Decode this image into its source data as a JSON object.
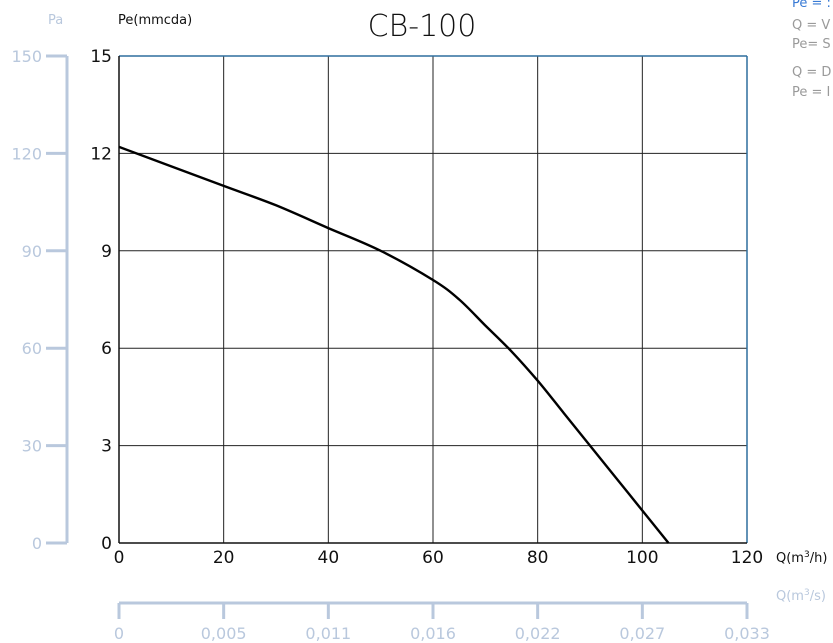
{
  "chart_data": {
    "type": "line",
    "title": "CB-100",
    "xlabel": "Q(m³/h)",
    "ylabel": "Pe(mmcda)",
    "xlim": [
      0,
      120
    ],
    "ylim": [
      0,
      15
    ],
    "x_ticks": [
      "0",
      "20",
      "40",
      "60",
      "80",
      "100",
      "120"
    ],
    "y_ticks": [
      "0",
      "3",
      "6",
      "9",
      "12",
      "15"
    ],
    "grid": true,
    "series": [
      {
        "x": [
          0,
          10,
          20,
          30,
          40,
          50,
          60,
          65,
          70,
          75,
          80,
          85,
          90,
          95,
          100,
          105
        ],
        "y": [
          12.2,
          11.6,
          11.0,
          10.4,
          9.7,
          9.0,
          8.1,
          7.5,
          6.7,
          5.9,
          5.0,
          4.0,
          3.0,
          2.0,
          1.0,
          0
        ]
      }
    ],
    "secondary_y": {
      "label": "Pa",
      "ticks": [
        "0",
        "30",
        "60",
        "90",
        "120",
        "150"
      ],
      "range": [
        0,
        150
      ]
    },
    "secondary_x": {
      "label": "Q(m³/s)",
      "ticks": [
        "0",
        "0,005",
        "0,011",
        "0,016",
        "0,022",
        "0,027",
        "0,033"
      ]
    },
    "legend_lines": [
      {
        "text": "Pe = :",
        "color": "#3a7bd5"
      },
      {
        "text": "Q = V",
        "color": "#9a9a9a"
      },
      {
        "text": "Pe= S",
        "color": "#9a9a9a"
      },
      {
        "text": "Q = D",
        "color": "#9a9a9a"
      },
      {
        "text": "Pe = I",
        "color": "#9a9a9a"
      }
    ],
    "colors": {
      "curve": "#000000",
      "frame": "#2f6e9e",
      "grid": "#222222",
      "secondary_axis": "#b9c8dd"
    }
  }
}
